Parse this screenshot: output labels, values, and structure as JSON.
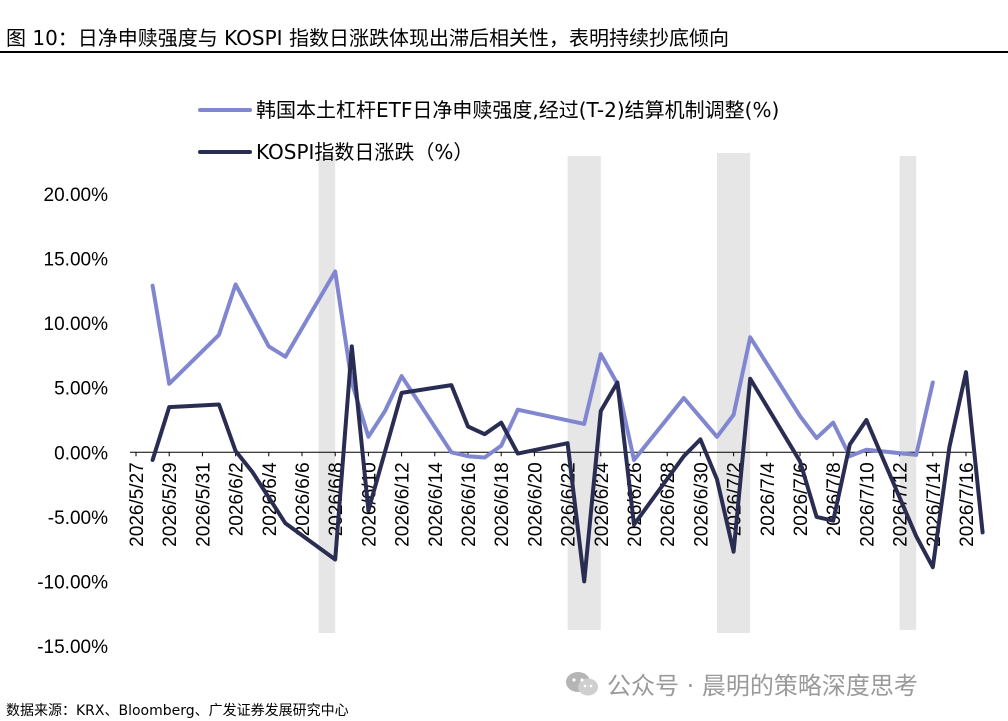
{
  "figure": {
    "title": "图  10：日净申赎强度与 KOSPI 指数日涨跌体现出滞后相关性，表明持续抄底倾向",
    "source": "数据来源：KRX、Bloomberg、广发证券发展研究中心",
    "watermark": "公众号 · 晨明的策略深度思考"
  },
  "colors": {
    "etf_series": "#8087d0",
    "kospi_series": "#2a2d52",
    "shade": "#e6e6e6"
  },
  "chart_data": {
    "type": "line",
    "title": "",
    "xlabel": "",
    "ylabel": "",
    "ylim": [
      -15,
      20
    ],
    "yticks": [
      20,
      15,
      10,
      5,
      0,
      -5,
      -10,
      -15
    ],
    "ytick_labels": [
      "20.00%",
      "15.00%",
      "10.00%",
      "5.00%",
      "0.00%",
      "-5.00%",
      "-10.00%",
      "-15.00%"
    ],
    "xtick_labels": [
      "2026/5/27",
      "2026/5/29",
      "2026/5/31",
      "2026/6/2",
      "2026/6/4",
      "2026/6/6",
      "2026/6/8",
      "2026/6/10",
      "2026/6/12",
      "2026/6/14",
      "2026/6/16",
      "2026/6/18",
      "2026/6/20",
      "2026/6/22",
      "2026/6/24",
      "2026/6/26",
      "2026/6/28",
      "2026/6/30",
      "2026/7/2",
      "2026/7/4",
      "2026/7/6",
      "2026/7/8",
      "2026/7/10",
      "2026/7/12",
      "2026/7/14",
      "2026/7/16"
    ],
    "x_start": "2026/5/27",
    "x_end": "2026/7/16",
    "legend_position": "top",
    "grid": false,
    "shaded_ranges": [
      [
        "2026/6/7",
        "2026/6/8"
      ],
      [
        "2026/6/22",
        "2026/6/24"
      ],
      [
        "2026/7/1",
        "2026/7/3"
      ],
      [
        "2026/7/12",
        "2026/7/13"
      ]
    ],
    "series": [
      {
        "name": "韩国本土杠杆ETF日净申赎强度,经过(T-2)结算机制调整(%)",
        "color": "#8087d0",
        "points": [
          [
            "2026/5/28",
            12.9
          ],
          [
            "2026/5/29",
            5.3
          ],
          [
            "2026/6/1",
            9.1
          ],
          [
            "2026/6/2",
            13.0
          ],
          [
            "2026/6/4",
            8.2
          ],
          [
            "2026/6/5",
            7.4
          ],
          [
            "2026/6/8",
            14.0
          ],
          [
            "2026/6/9",
            5.4
          ],
          [
            "2026/6/10",
            1.2
          ],
          [
            "2026/6/11",
            3.2
          ],
          [
            "2026/6/12",
            5.9
          ],
          [
            "2026/6/15",
            0.0
          ],
          [
            "2026/6/16",
            -0.3
          ],
          [
            "2026/6/17",
            -0.4
          ],
          [
            "2026/6/18",
            0.5
          ],
          [
            "2026/6/19",
            3.3
          ],
          [
            "2026/6/23",
            2.2
          ],
          [
            "2026/6/24",
            7.6
          ],
          [
            "2026/6/25",
            5.3
          ],
          [
            "2026/6/26",
            -0.6
          ],
          [
            "2026/6/29",
            4.2
          ],
          [
            "2026/7/1",
            1.2
          ],
          [
            "2026/7/2",
            2.9
          ],
          [
            "2026/7/3",
            8.9
          ],
          [
            "2026/7/6",
            2.8
          ],
          [
            "2026/7/7",
            1.1
          ],
          [
            "2026/7/8",
            2.3
          ],
          [
            "2026/7/9",
            -0.3
          ],
          [
            "2026/7/10",
            0.2
          ],
          [
            "2026/7/13",
            -0.2
          ],
          [
            "2026/7/14",
            5.4
          ]
        ]
      },
      {
        "name": "KOSPI指数日涨跌（%）",
        "color": "#2a2d52",
        "points": [
          [
            "2026/5/28",
            -0.6
          ],
          [
            "2026/5/29",
            3.5
          ],
          [
            "2026/6/1",
            3.7
          ],
          [
            "2026/6/2",
            0.1
          ],
          [
            "2026/6/3",
            -1.5
          ],
          [
            "2026/6/5",
            -5.5
          ],
          [
            "2026/6/8",
            -8.3
          ],
          [
            "2026/6/9",
            8.2
          ],
          [
            "2026/6/10",
            -4.5
          ],
          [
            "2026/6/12",
            4.6
          ],
          [
            "2026/6/15",
            5.2
          ],
          [
            "2026/6/16",
            2.0
          ],
          [
            "2026/6/17",
            1.4
          ],
          [
            "2026/6/18",
            2.3
          ],
          [
            "2026/6/19",
            -0.1
          ],
          [
            "2026/6/22",
            0.7
          ],
          [
            "2026/6/23",
            -10.0
          ],
          [
            "2026/6/24",
            3.2
          ],
          [
            "2026/6/25",
            5.4
          ],
          [
            "2026/6/26",
            -5.6
          ],
          [
            "2026/6/29",
            -0.3
          ],
          [
            "2026/6/30",
            1.0
          ],
          [
            "2026/7/1",
            -2.1
          ],
          [
            "2026/7/2",
            -7.7
          ],
          [
            "2026/7/3",
            5.7
          ],
          [
            "2026/7/6",
            -0.7
          ],
          [
            "2026/7/7",
            -5.0
          ],
          [
            "2026/7/8",
            -5.3
          ],
          [
            "2026/7/9",
            0.6
          ],
          [
            "2026/7/10",
            2.5
          ],
          [
            "2026/7/13",
            -6.5
          ],
          [
            "2026/7/14",
            -8.9
          ],
          [
            "2026/7/15",
            0.4
          ],
          [
            "2026/7/16",
            6.2
          ],
          [
            "2026/7/17",
            -6.2
          ]
        ]
      }
    ]
  }
}
